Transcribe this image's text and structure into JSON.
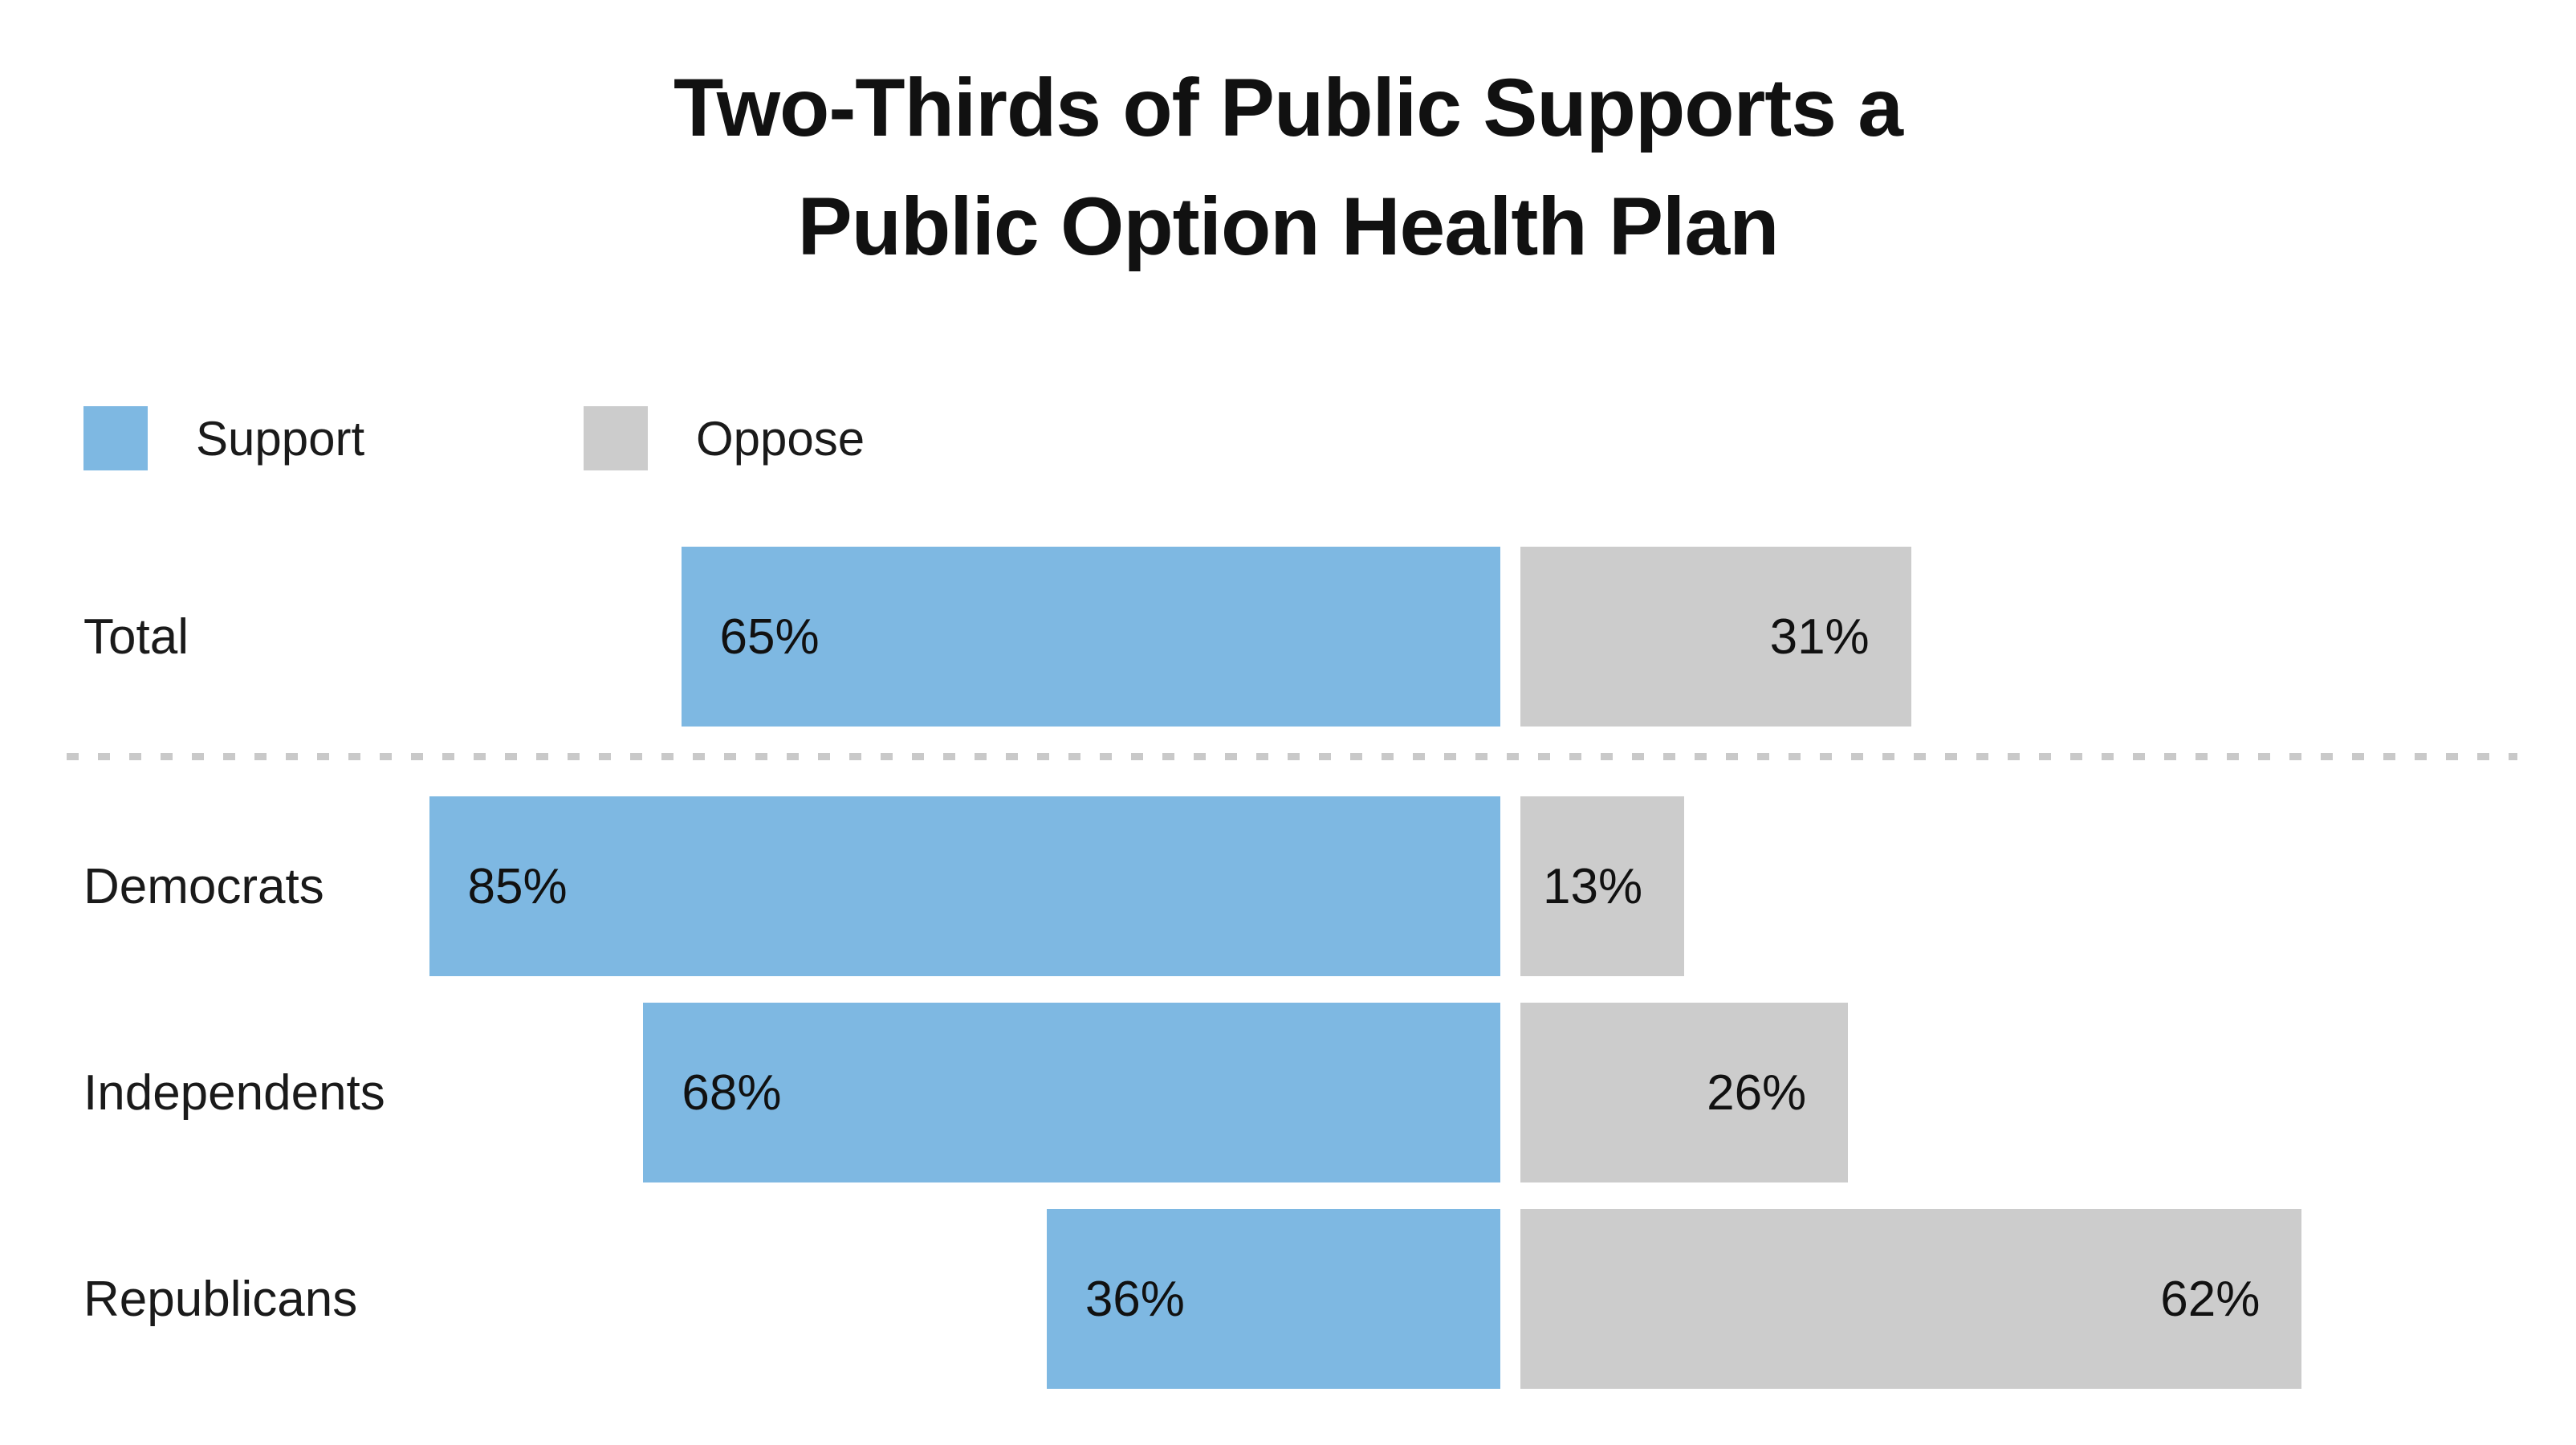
{
  "chart": {
    "title_line1": "Two-Thirds of Public Supports a",
    "title_line2": "Public Option Health Plan",
    "legend": [
      {
        "label": "Support",
        "color": "#7EB8E2"
      },
      {
        "label": "Oppose",
        "color": "#CCCCCC"
      }
    ]
  },
  "chart_data": {
    "type": "bar",
    "orientation": "horizontal",
    "diverging": true,
    "title": "Two-Thirds of Public Supports a Public Option Health Plan",
    "categories": [
      "Total",
      "Democrats",
      "Independents",
      "Republicans"
    ],
    "series": [
      {
        "name": "Support",
        "color": "#7EB8E2",
        "values": [
          65,
          85,
          68,
          36
        ]
      },
      {
        "name": "Oppose",
        "color": "#CCCCCC",
        "values": [
          31,
          13,
          26,
          62
        ]
      }
    ],
    "value_label_suffix": "%",
    "separator_after_category": "Total",
    "xlim": [
      0,
      100
    ],
    "grid": false,
    "legend_position": "top-left",
    "support_labels_inside_left": true,
    "oppose_labels_inside_right": true
  }
}
